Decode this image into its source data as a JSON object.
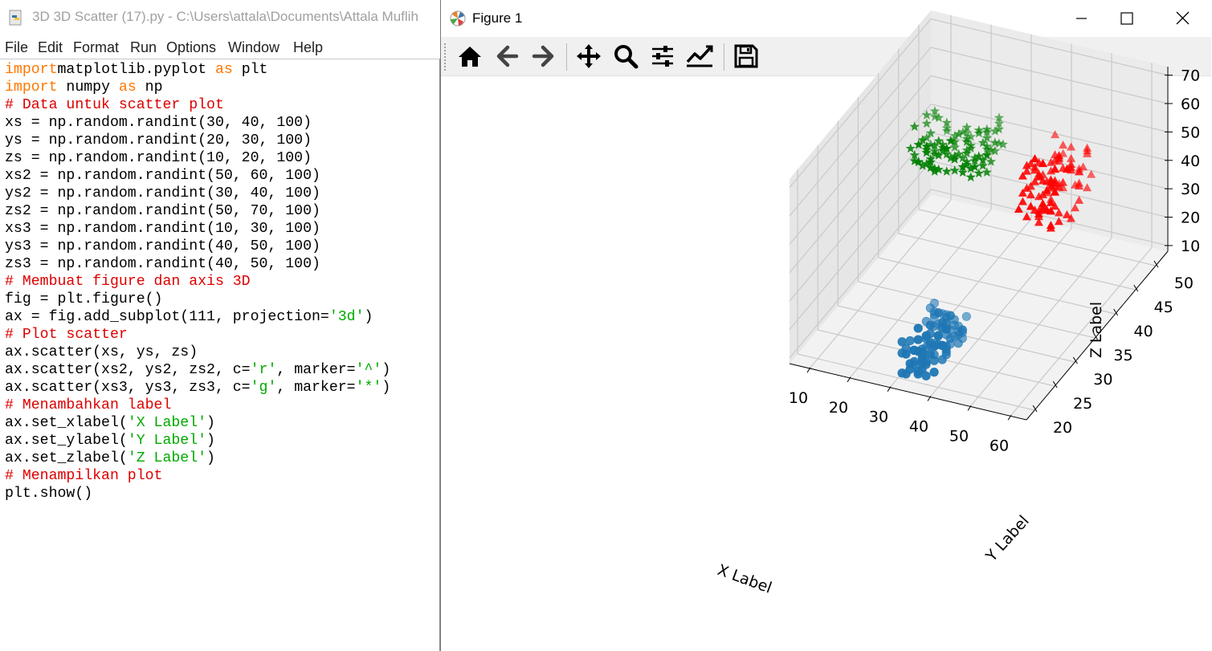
{
  "idle": {
    "title": "3D 3D Scatter (17).py - C:\\Users\\attala\\Documents\\Attala Muflih",
    "menu": [
      "File",
      "Edit",
      "Format",
      "Run",
      "Options",
      "Window",
      "Help"
    ],
    "code": [
      [
        [
          "kw",
          "import"
        ],
        [
          "",
          "matplotlib.pyplot "
        ],
        [
          "kw",
          "as"
        ],
        [
          "",
          " plt"
        ]
      ],
      [
        [
          "kw",
          "import"
        ],
        [
          "",
          " numpy "
        ],
        [
          "kw",
          "as"
        ],
        [
          "",
          " np"
        ]
      ],
      [
        [
          "cm",
          "# Data untuk scatter plot"
        ]
      ],
      [
        [
          "",
          "xs = np.random.randint(30, 40, 100)"
        ]
      ],
      [
        [
          "",
          "ys = np.random.randint(20, 30, 100)"
        ]
      ],
      [
        [
          "",
          "zs = np.random.randint(10, 20, 100)"
        ]
      ],
      [
        [
          "",
          "xs2 = np.random.randint(50, 60, 100)"
        ]
      ],
      [
        [
          "",
          "ys2 = np.random.randint(30, 40, 100)"
        ]
      ],
      [
        [
          "",
          "zs2 = np.random.randint(50, 70, 100)"
        ]
      ],
      [
        [
          "",
          "xs3 = np.random.randint(10, 30, 100)"
        ]
      ],
      [
        [
          "",
          "ys3 = np.random.randint(40, 50, 100)"
        ]
      ],
      [
        [
          "",
          "zs3 = np.random.randint(40, 50, 100)"
        ]
      ],
      [
        [
          "cm",
          "# Membuat figure dan axis 3D"
        ]
      ],
      [
        [
          "",
          "fig = plt.figure()"
        ]
      ],
      [
        [
          "",
          "ax = fig.add_subplot(111, projection="
        ],
        [
          "st",
          "'3d'"
        ],
        [
          "",
          ")"
        ]
      ],
      [
        [
          "cm",
          "# Plot scatter"
        ]
      ],
      [
        [
          "",
          "ax.scatter(xs, ys, zs)"
        ]
      ],
      [
        [
          "",
          "ax.scatter(xs2, ys2, zs2, c="
        ],
        [
          "st",
          "'r'"
        ],
        [
          "",
          ", marker="
        ],
        [
          "st",
          "'^'"
        ],
        [
          "",
          ")"
        ]
      ],
      [
        [
          "",
          "ax.scatter(xs3, ys3, zs3, c="
        ],
        [
          "st",
          "'g'"
        ],
        [
          "",
          ", marker="
        ],
        [
          "st",
          "'*'"
        ],
        [
          "",
          ")"
        ]
      ],
      [
        [
          "cm",
          "# Menambahkan label"
        ]
      ],
      [
        [
          "",
          "ax.set_xlabel("
        ],
        [
          "st",
          "'X Label'"
        ],
        [
          "",
          ")"
        ]
      ],
      [
        [
          "",
          "ax.set_ylabel("
        ],
        [
          "st",
          "'Y Label'"
        ],
        [
          "",
          ")"
        ]
      ],
      [
        [
          "",
          "ax.set_zlabel("
        ],
        [
          "st",
          "'Z Label'"
        ],
        [
          "",
          ")"
        ]
      ],
      [
        [
          "cm",
          "# Menampilkan plot"
        ]
      ],
      [
        [
          "",
          "plt.show()"
        ]
      ]
    ]
  },
  "figure": {
    "title": "Figure 1",
    "toolbar": [
      "home-icon",
      "back-icon",
      "forward-icon",
      "pan-icon",
      "zoom-icon",
      "configure-subplots-icon",
      "edit-axis-icon",
      "save-icon"
    ]
  },
  "chart_data": {
    "type": "scatter",
    "projection": "3d",
    "xlabel": "X Label",
    "ylabel": "Y Label",
    "zlabel": "Z Label",
    "xticks": [
      10,
      20,
      30,
      40,
      50,
      60
    ],
    "yticks": [
      20,
      25,
      30,
      35,
      40,
      45,
      50
    ],
    "zticks": [
      10,
      20,
      30,
      40,
      50,
      60,
      70
    ],
    "xlim": [
      5,
      64
    ],
    "ylim": [
      18,
      53
    ],
    "zlim": [
      8,
      73
    ],
    "grid": true,
    "series": [
      {
        "color": "#1f77b4",
        "marker": "o",
        "x_range": [
          30,
          39
        ],
        "y_range": [
          20,
          29
        ],
        "z_range": [
          10,
          19
        ],
        "count": 100
      },
      {
        "color": "#ff0000",
        "marker": "^",
        "x_range": [
          50,
          59
        ],
        "y_range": [
          30,
          39
        ],
        "z_range": [
          50,
          69
        ],
        "count": 100
      },
      {
        "color": "#008000",
        "marker": "*",
        "x_range": [
          10,
          29
        ],
        "y_range": [
          40,
          49
        ],
        "z_range": [
          40,
          49
        ],
        "count": 100
      }
    ]
  }
}
